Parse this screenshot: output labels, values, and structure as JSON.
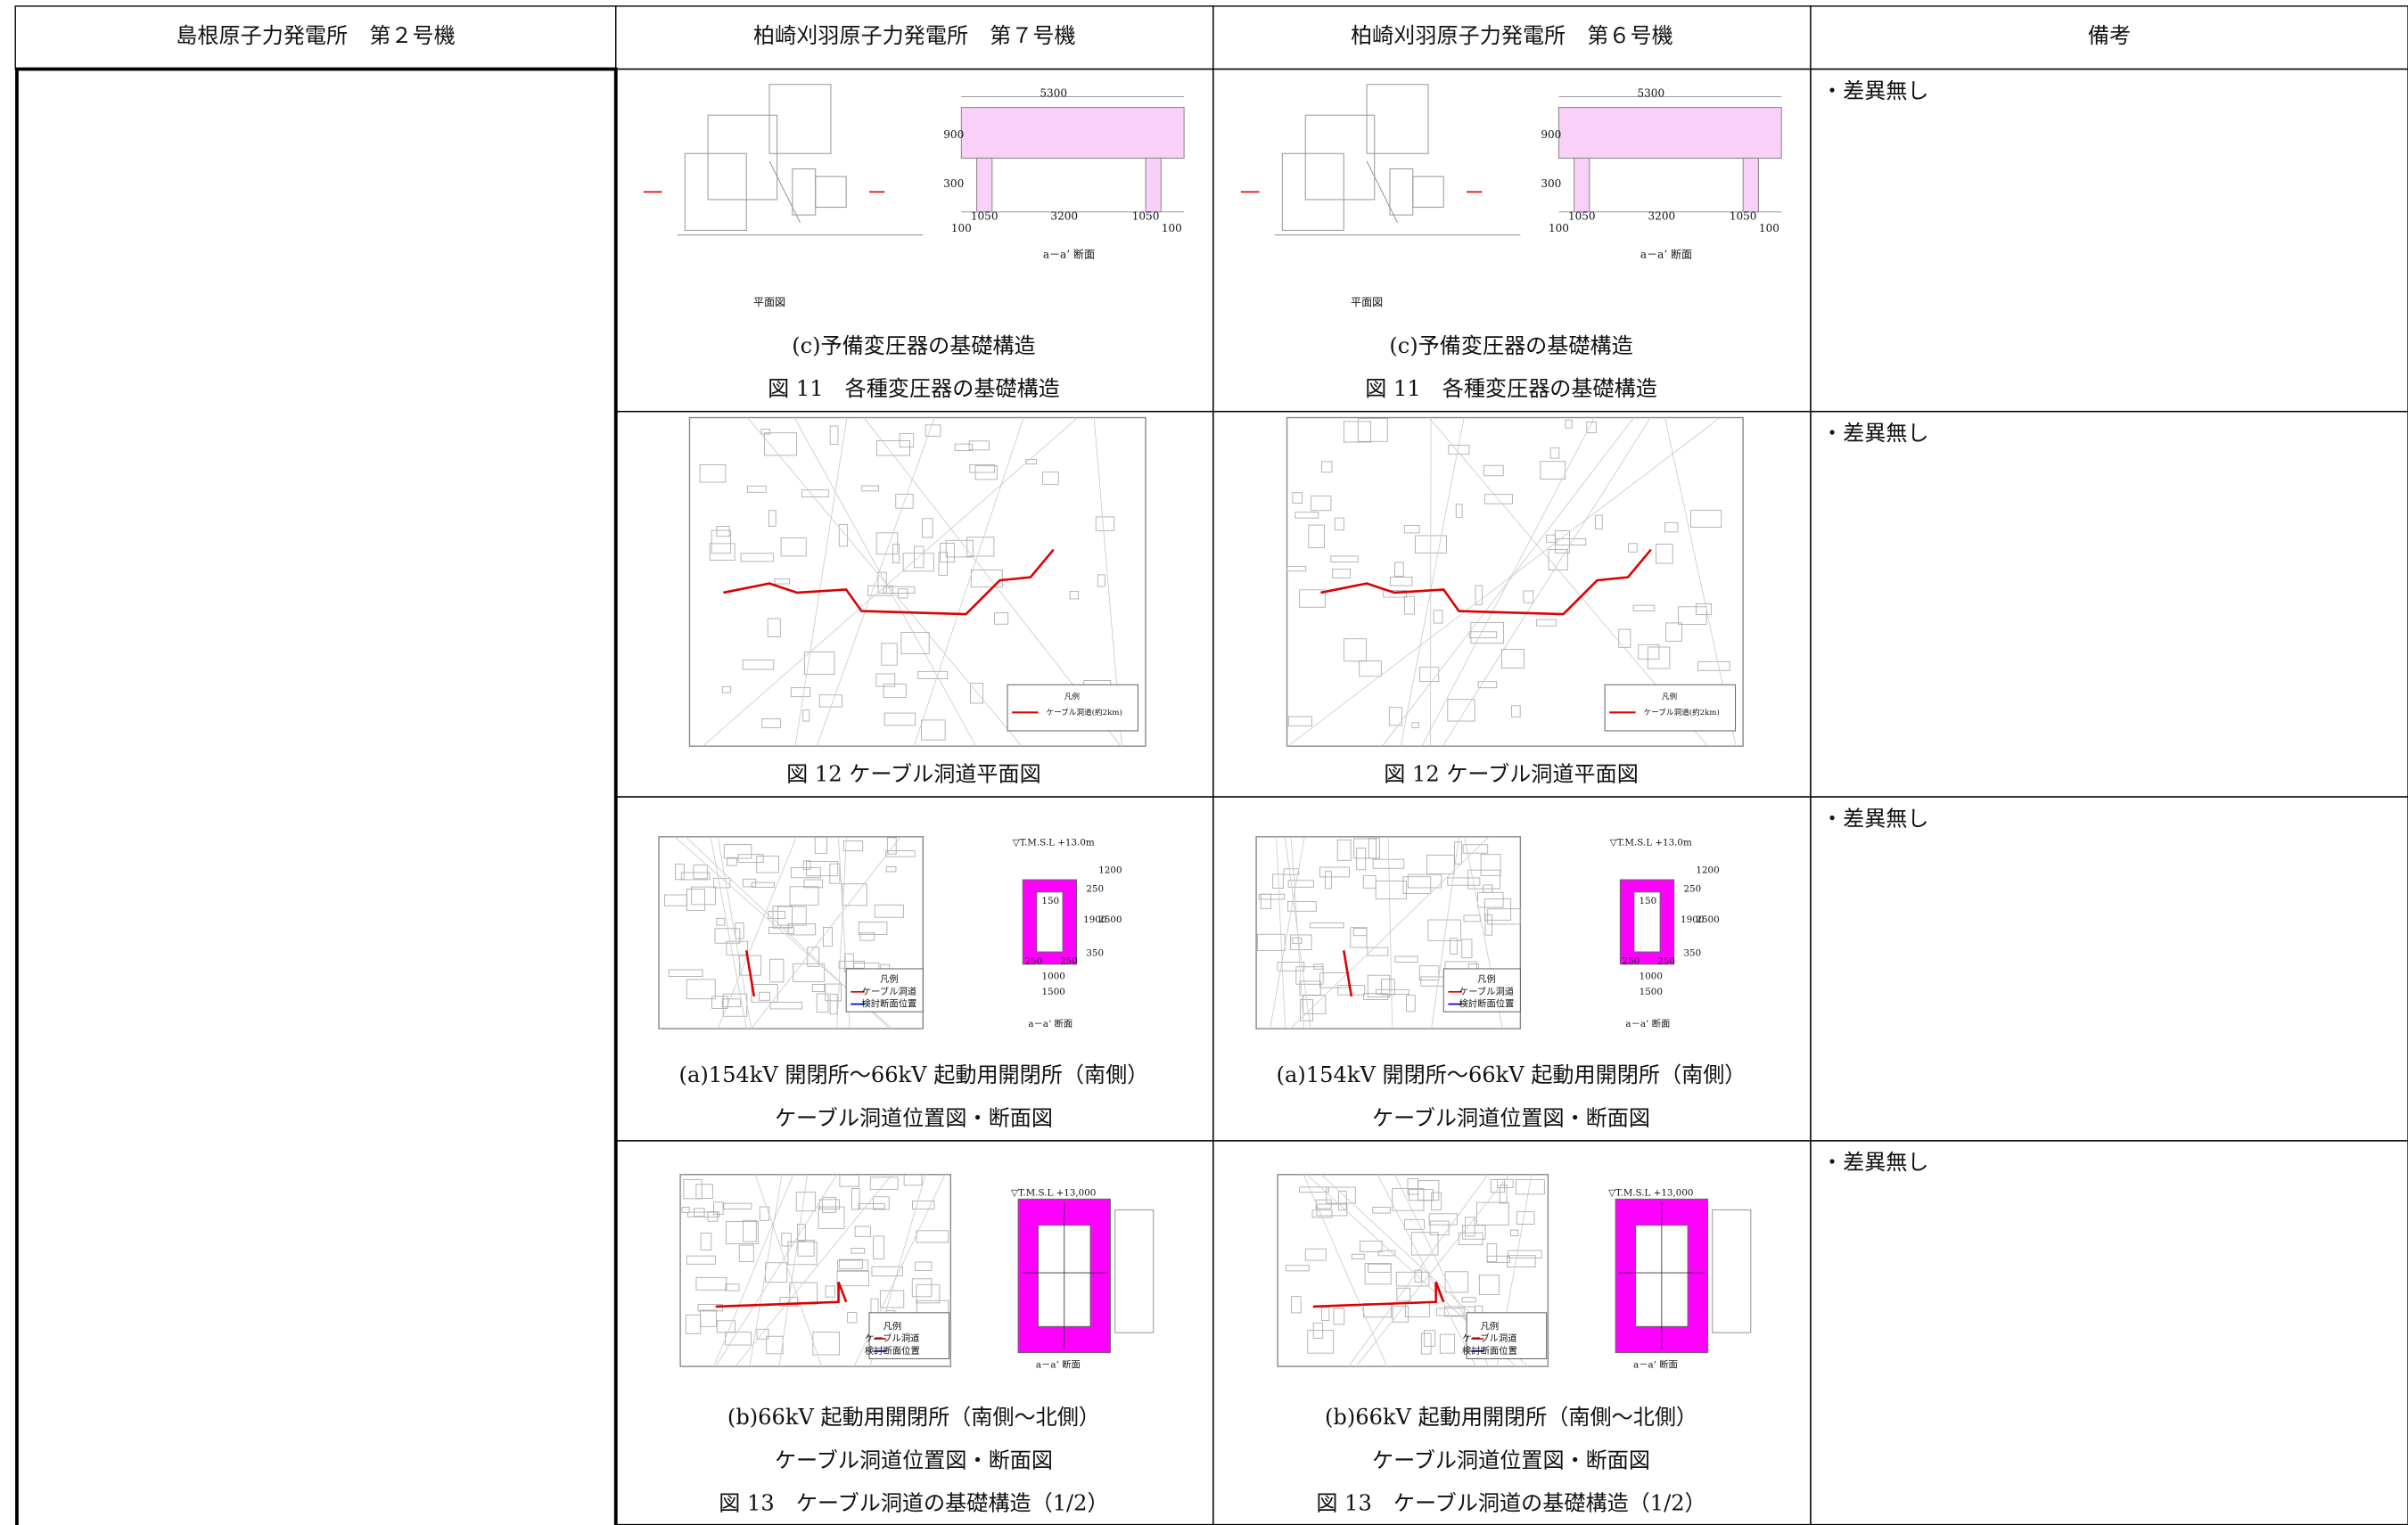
{
  "table": {
    "headers": [
      "島根原子力発電所　第２号機",
      "柏崎刈羽原子力発電所　第７号機",
      "柏崎刈羽原子力発電所　第６号機",
      "備考"
    ],
    "rows": [
      {
        "k7": {
          "labels": [
            "5300",
            "900",
            "300",
            "1050",
            "3200",
            "1050",
            "100",
            "100",
            "a－a’ 断面",
            "平面図"
          ],
          "captions": [
            "(c)予備変圧器の基礎構造",
            "図 11　各種変圧器の基礎構造"
          ]
        },
        "k6": {
          "labels": [
            "5300",
            "900",
            "300",
            "1050",
            "3200",
            "1050",
            "100",
            "100",
            "a－a’ 断面",
            "平面図"
          ],
          "captions": [
            "(c)予備変圧器の基礎構造",
            "図 11　各種変圧器の基礎構造"
          ]
        },
        "remark": "・差異無し"
      },
      {
        "k7": {
          "labels": [
            "凡例",
            "ケーブル洞道(約2km)"
          ],
          "captions": [
            "図 12 ケーブル洞道平面図"
          ]
        },
        "k6": {
          "labels": [
            "凡例",
            "ケーブル洞道(約2km)"
          ],
          "captions": [
            "図 12 ケーブル洞道平面図"
          ]
        },
        "remark": "・差異無し"
      },
      {
        "k7": {
          "labels": [
            "▽T.M.S.L +13.0m",
            "1200",
            "250",
            "1900",
            "2500",
            "350",
            "150",
            "250",
            "250",
            "1000",
            "1500",
            "凡例",
            "ケーブル洞道",
            "検討断面位置",
            "a－a’ 断面"
          ],
          "captions": [
            "(a)154kV 開閉所～66kV 起動用開閉所（南側）",
            "ケーブル洞道位置図・断面図"
          ]
        },
        "k6": {
          "labels": [
            "▽T.M.S.L +13.0m",
            "1200",
            "250",
            "1900",
            "2500",
            "350",
            "150",
            "250",
            "250",
            "1000",
            "1500",
            "凡例",
            "ケーブル洞道",
            "検討断面位置",
            "a－a’ 断面"
          ],
          "captions": [
            "(a)154kV 開閉所～66kV 起動用開閉所（南側）",
            "ケーブル洞道位置図・断面図"
          ]
        },
        "remark": "・差異無し"
      },
      {
        "k7": {
          "labels": [
            "▽T.M.S.L +13,000",
            "凡例",
            "ケーブル洞道",
            "検討断面位置",
            "a－a’ 断面"
          ],
          "captions": [
            "(b)66kV 起動用開閉所（南側～北側）",
            "ケーブル洞道位置図・断面図",
            "図 13　ケーブル洞道の基礎構造（1/2）"
          ]
        },
        "k6": {
          "labels": [
            "▽T.M.S.L +13,000",
            "凡例",
            "ケーブル洞道",
            "検討断面位置",
            "a－a’ 断面"
          ],
          "captions": [
            "(b)66kV 起動用開閉所（南側～北側）",
            "ケーブル洞道位置図・断面図",
            "図 13　ケーブル洞道の基礎構造（1/2）"
          ]
        },
        "remark": "・差異無し"
      }
    ]
  }
}
